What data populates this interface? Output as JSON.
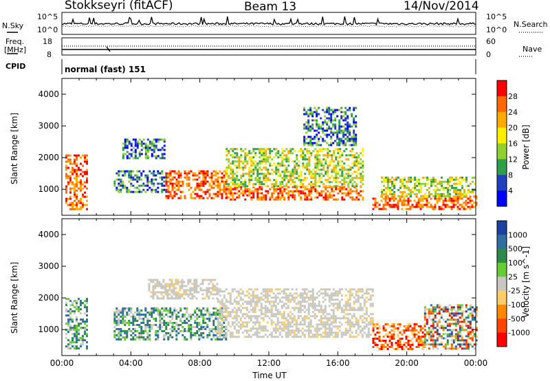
{
  "header": {
    "station": "Stokkseyri (fitACF)",
    "beam": "Beam 13",
    "date": "14/Nov/2014"
  },
  "noise_panel": {
    "left_label": "N.Sky",
    "left_ticks": [
      "10^5",
      "10^0"
    ],
    "right_ticks": [
      "10^5",
      "10^0"
    ],
    "right_label": "N.Search"
  },
  "freq_panel": {
    "left_label_line1": "Freq.",
    "left_label_line2": "[MHz]",
    "left_ticks": [
      "18",
      "8"
    ],
    "right_ticks": [
      "60",
      "0"
    ],
    "right_label": "Nave"
  },
  "cpid": {
    "label": "CPID",
    "value": "normal (fast) 151"
  },
  "chart_data": [
    {
      "type": "heatmap",
      "name": "power",
      "ylabel": "Slant Range [km]",
      "xlabel": "",
      "xlim": [
        0,
        24
      ],
      "ylim": [
        180,
        4500
      ],
      "yticks": [
        1000,
        2000,
        3000,
        4000
      ],
      "colorbar_label": "Power [dB]",
      "colorbar_ticks": [
        "28",
        "24",
        "20",
        "16",
        "12",
        "8",
        "4"
      ],
      "colorbar_colors": [
        "#ff0000",
        "#ff6a00",
        "#ffaa00",
        "#ffee00",
        "#90d030",
        "#2ea04a",
        "#2040c0",
        "#0000ff"
      ],
      "echo_regions": [
        {
          "t": [
            0.2,
            1.4
          ],
          "r": [
            400,
            2100
          ],
          "level": "high"
        },
        {
          "t": [
            3.0,
            6.0
          ],
          "r": [
            900,
            1600
          ],
          "level": "low"
        },
        {
          "t": [
            3.5,
            6.0
          ],
          "r": [
            2000,
            2600
          ],
          "level": "low"
        },
        {
          "t": [
            6.0,
            9.5
          ],
          "r": [
            700,
            1600
          ],
          "level": "high"
        },
        {
          "t": [
            9.5,
            17.5
          ],
          "r": [
            700,
            1100
          ],
          "level": "high"
        },
        {
          "t": [
            9.5,
            17.5
          ],
          "r": [
            1100,
            2300
          ],
          "level": "medium"
        },
        {
          "t": [
            14.0,
            17.0
          ],
          "r": [
            2400,
            3600
          ],
          "level": "low"
        },
        {
          "t": [
            18.0,
            24.0
          ],
          "r": [
            400,
            800
          ],
          "level": "high"
        },
        {
          "t": [
            18.5,
            24.0
          ],
          "r": [
            800,
            1400
          ],
          "level": "medium"
        }
      ]
    },
    {
      "type": "heatmap",
      "name": "velocity",
      "ylabel": "Slant Range [km]",
      "xlabel": "Time UT",
      "xlim": [
        0,
        24
      ],
      "ylim": [
        180,
        4500
      ],
      "yticks": [
        1000,
        2000,
        3000,
        4000
      ],
      "xticks": [
        "00:00",
        "04:00",
        "08:00",
        "12:00",
        "16:00",
        "20:00",
        "00:00"
      ],
      "colorbar_label": "Velocity [m s^-1]",
      "colorbar_ticks": [
        "1000",
        "500",
        "100",
        "25",
        "-25",
        "-100",
        "-500",
        "-1000"
      ],
      "colorbar_colors": [
        "#1e40a0",
        "#2e6ea0",
        "#2e8a4a",
        "#66cc33",
        "#c8c8c0",
        "#ffcc66",
        "#ff8800",
        "#ff4400",
        "#ff0000"
      ],
      "echo_regions": [
        {
          "t": [
            0.2,
            1.4
          ],
          "r": [
            400,
            2000
          ],
          "level": "positive"
        },
        {
          "t": [
            3.0,
            9.5
          ],
          "r": [
            700,
            1700
          ],
          "level": "positive"
        },
        {
          "t": [
            9.0,
            18.0
          ],
          "r": [
            800,
            2300
          ],
          "level": "zero"
        },
        {
          "t": [
            5.0,
            9.0
          ],
          "r": [
            2000,
            2600
          ],
          "level": "zero"
        },
        {
          "t": [
            18.0,
            21.0
          ],
          "r": [
            400,
            1200
          ],
          "level": "negative"
        },
        {
          "t": [
            21.0,
            24.0
          ],
          "r": [
            400,
            1800
          ],
          "level": "mixed"
        }
      ]
    }
  ]
}
